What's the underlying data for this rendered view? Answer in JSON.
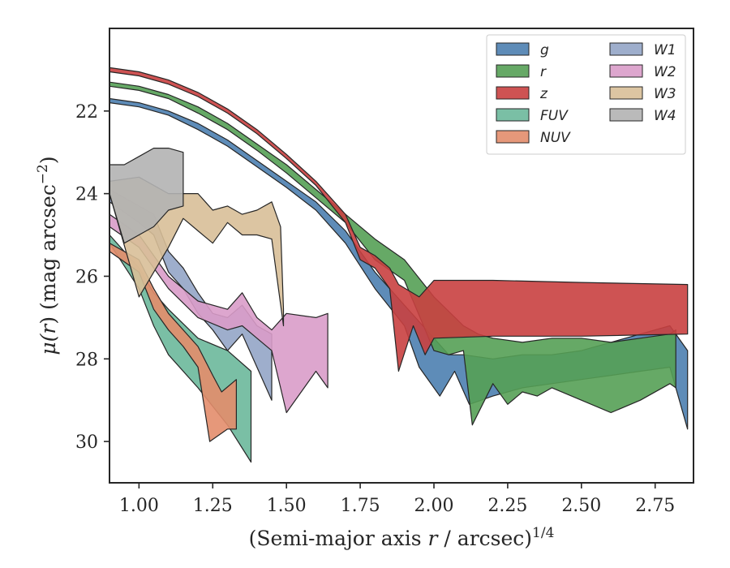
{
  "chart_data": {
    "type": "area",
    "xlabel": "(Semi-major axis r / arcsec)^1/4",
    "xlabel_parts": {
      "pre": "(Semi-major axis ",
      "var": "r",
      "post": " / arcsec)",
      "sup": "1/4"
    },
    "ylabel": "μ(r) (mag arcsec^−2)",
    "ylabel_parts": {
      "pre": "μ(",
      "var": "r",
      "post": ") (mag arcsec",
      "sup": "−2",
      "close": ")"
    },
    "xlim": [
      0.9,
      2.88
    ],
    "ylim": [
      31.0,
      20.0
    ],
    "y_inverted": true,
    "xticks": [
      1.0,
      1.25,
      1.5,
      1.75,
      2.0,
      2.25,
      2.5,
      2.75
    ],
    "xtick_labels": [
      "1.00",
      "1.25",
      "1.50",
      "1.75",
      "2.00",
      "2.25",
      "2.50",
      "2.75"
    ],
    "yticks": [
      22,
      24,
      26,
      28,
      30
    ],
    "ytick_labels": [
      "22",
      "24",
      "26",
      "28",
      "30"
    ],
    "grid": false,
    "legend": {
      "placement": "top-right",
      "columns": 2
    },
    "series": [
      {
        "name": "g",
        "color": "#4c7fb0",
        "upper": [
          [
            0.9,
            21.7
          ],
          [
            1.0,
            21.8
          ],
          [
            1.1,
            22.0
          ],
          [
            1.2,
            22.3
          ],
          [
            1.3,
            22.7
          ],
          [
            1.4,
            23.2
          ],
          [
            1.5,
            23.7
          ],
          [
            1.6,
            24.2
          ],
          [
            1.7,
            24.9
          ],
          [
            1.8,
            25.9
          ],
          [
            1.9,
            26.7
          ],
          [
            2.0,
            27.5
          ],
          [
            2.05,
            27.9
          ],
          [
            2.1,
            27.9
          ],
          [
            2.2,
            28.0
          ],
          [
            2.3,
            27.9
          ],
          [
            2.4,
            27.9
          ],
          [
            2.5,
            27.8
          ],
          [
            2.6,
            27.6
          ],
          [
            2.7,
            27.4
          ],
          [
            2.8,
            27.2
          ],
          [
            2.86,
            27.8
          ]
        ],
        "lower": [
          [
            0.9,
            21.8
          ],
          [
            1.0,
            21.9
          ],
          [
            1.1,
            22.1
          ],
          [
            1.2,
            22.45
          ],
          [
            1.3,
            22.85
          ],
          [
            1.4,
            23.35
          ],
          [
            1.5,
            23.85
          ],
          [
            1.6,
            24.4
          ],
          [
            1.7,
            25.2
          ],
          [
            1.8,
            26.3
          ],
          [
            1.9,
            27.2
          ],
          [
            1.95,
            28.2
          ],
          [
            2.02,
            28.9
          ],
          [
            2.07,
            28.3
          ],
          [
            2.12,
            29.1
          ],
          [
            2.2,
            28.9
          ],
          [
            2.25,
            28.8
          ],
          [
            2.3,
            28.7
          ],
          [
            2.4,
            28.6
          ],
          [
            2.5,
            28.5
          ],
          [
            2.6,
            28.4
          ],
          [
            2.7,
            28.3
          ],
          [
            2.8,
            28.2
          ],
          [
            2.86,
            29.7
          ]
        ]
      },
      {
        "name": "r",
        "color": "#55a055",
        "upper": [
          [
            0.9,
            21.3
          ],
          [
            1.0,
            21.4
          ],
          [
            1.1,
            21.6
          ],
          [
            1.2,
            21.9
          ],
          [
            1.3,
            22.3
          ],
          [
            1.4,
            22.8
          ],
          [
            1.5,
            23.3
          ],
          [
            1.6,
            23.9
          ],
          [
            1.7,
            24.5
          ],
          [
            1.8,
            25.1
          ],
          [
            1.9,
            25.6
          ],
          [
            2.0,
            26.5
          ],
          [
            2.1,
            27.2
          ],
          [
            2.15,
            27.4
          ],
          [
            2.2,
            27.5
          ],
          [
            2.3,
            27.6
          ],
          [
            2.4,
            27.5
          ],
          [
            2.5,
            27.5
          ],
          [
            2.6,
            27.6
          ],
          [
            2.7,
            27.5
          ],
          [
            2.8,
            27.4
          ],
          [
            2.82,
            27.3
          ]
        ],
        "lower": [
          [
            0.9,
            21.4
          ],
          [
            1.0,
            21.5
          ],
          [
            1.1,
            21.7
          ],
          [
            1.2,
            22.05
          ],
          [
            1.3,
            22.45
          ],
          [
            1.4,
            22.95
          ],
          [
            1.5,
            23.5
          ],
          [
            1.6,
            24.1
          ],
          [
            1.7,
            24.7
          ],
          [
            1.8,
            25.6
          ],
          [
            1.9,
            26.1
          ],
          [
            2.0,
            27.8
          ],
          [
            2.05,
            27.9
          ],
          [
            2.1,
            27.8
          ],
          [
            2.13,
            29.6
          ],
          [
            2.2,
            28.6
          ],
          [
            2.25,
            29.1
          ],
          [
            2.3,
            28.8
          ],
          [
            2.35,
            28.9
          ],
          [
            2.4,
            28.7
          ],
          [
            2.5,
            29.0
          ],
          [
            2.6,
            29.3
          ],
          [
            2.7,
            29.0
          ],
          [
            2.8,
            28.6
          ],
          [
            2.82,
            28.7
          ]
        ]
      },
      {
        "name": "z",
        "color": "#c94040",
        "upper": [
          [
            0.9,
            20.95
          ],
          [
            1.0,
            21.05
          ],
          [
            1.1,
            21.25
          ],
          [
            1.2,
            21.55
          ],
          [
            1.3,
            21.95
          ],
          [
            1.4,
            22.45
          ],
          [
            1.5,
            23.05
          ],
          [
            1.6,
            23.7
          ],
          [
            1.7,
            24.5
          ],
          [
            1.75,
            25.3
          ],
          [
            1.8,
            25.5
          ],
          [
            1.85,
            25.8
          ],
          [
            1.88,
            26.2
          ],
          [
            1.95,
            26.5
          ],
          [
            2.0,
            26.1
          ],
          [
            2.2,
            26.1
          ],
          [
            2.5,
            26.15
          ],
          [
            2.86,
            26.2
          ]
        ],
        "lower": [
          [
            0.9,
            21.05
          ],
          [
            1.0,
            21.15
          ],
          [
            1.1,
            21.35
          ],
          [
            1.2,
            21.65
          ],
          [
            1.3,
            22.05
          ],
          [
            1.4,
            22.55
          ],
          [
            1.5,
            23.15
          ],
          [
            1.6,
            23.8
          ],
          [
            1.7,
            24.7
          ],
          [
            1.75,
            25.6
          ],
          [
            1.8,
            25.8
          ],
          [
            1.85,
            26.3
          ],
          [
            1.88,
            28.3
          ],
          [
            1.93,
            27.2
          ],
          [
            1.97,
            27.9
          ],
          [
            2.0,
            27.5
          ],
          [
            2.2,
            27.45
          ],
          [
            2.5,
            27.45
          ],
          [
            2.86,
            27.4
          ]
        ]
      },
      {
        "name": "FUV",
        "color": "#6bb89b",
        "upper": [
          [
            0.9,
            25.0
          ],
          [
            1.0,
            25.8
          ],
          [
            1.05,
            26.4
          ],
          [
            1.1,
            26.8
          ],
          [
            1.2,
            27.5
          ],
          [
            1.3,
            27.8
          ],
          [
            1.38,
            28.3
          ]
        ],
        "lower": [
          [
            0.9,
            25.2
          ],
          [
            1.0,
            26.3
          ],
          [
            1.05,
            27.2
          ],
          [
            1.1,
            27.9
          ],
          [
            1.2,
            28.7
          ],
          [
            1.3,
            29.6
          ],
          [
            1.38,
            30.5
          ]
        ]
      },
      {
        "name": "NUV",
        "color": "#e38d6c",
        "upper": [
          [
            0.9,
            25.2
          ],
          [
            1.0,
            25.6
          ],
          [
            1.05,
            26.3
          ],
          [
            1.1,
            26.9
          ],
          [
            1.15,
            27.3
          ],
          [
            1.2,
            27.7
          ],
          [
            1.25,
            28.4
          ],
          [
            1.28,
            28.8
          ],
          [
            1.33,
            28.5
          ]
        ],
        "lower": [
          [
            0.9,
            25.4
          ],
          [
            1.0,
            25.9
          ],
          [
            1.05,
            26.8
          ],
          [
            1.1,
            27.3
          ],
          [
            1.15,
            27.7
          ],
          [
            1.2,
            28.2
          ],
          [
            1.24,
            30.0
          ],
          [
            1.3,
            29.7
          ],
          [
            1.33,
            29.7
          ]
        ]
      },
      {
        "name": "W1",
        "color": "#93a5c7",
        "upper": [
          [
            0.9,
            23.9
          ],
          [
            1.0,
            24.3
          ],
          [
            1.05,
            24.5
          ],
          [
            1.1,
            25.4
          ],
          [
            1.15,
            25.8
          ],
          [
            1.2,
            26.4
          ],
          [
            1.25,
            26.9
          ],
          [
            1.3,
            27.0
          ],
          [
            1.35,
            26.7
          ],
          [
            1.4,
            27.2
          ],
          [
            1.45,
            27.4
          ]
        ],
        "lower": [
          [
            0.9,
            24.2
          ],
          [
            1.0,
            24.7
          ],
          [
            1.05,
            25.0
          ],
          [
            1.1,
            25.9
          ],
          [
            1.15,
            26.3
          ],
          [
            1.2,
            26.9
          ],
          [
            1.25,
            27.3
          ],
          [
            1.3,
            27.8
          ],
          [
            1.35,
            27.4
          ],
          [
            1.4,
            28.2
          ],
          [
            1.45,
            29.0
          ]
        ]
      },
      {
        "name": "W2",
        "color": "#d99cc9",
        "upper": [
          [
            0.9,
            24.5
          ],
          [
            1.0,
            25.0
          ],
          [
            1.1,
            26.0
          ],
          [
            1.2,
            26.6
          ],
          [
            1.3,
            26.8
          ],
          [
            1.35,
            26.4
          ],
          [
            1.4,
            27.0
          ],
          [
            1.45,
            27.3
          ],
          [
            1.5,
            26.9
          ],
          [
            1.6,
            27.0
          ],
          [
            1.64,
            26.9
          ]
        ],
        "lower": [
          [
            0.9,
            24.8
          ],
          [
            1.0,
            25.3
          ],
          [
            1.1,
            26.3
          ],
          [
            1.2,
            27.0
          ],
          [
            1.3,
            27.3
          ],
          [
            1.35,
            27.2
          ],
          [
            1.4,
            27.5
          ],
          [
            1.45,
            27.8
          ],
          [
            1.5,
            29.3
          ],
          [
            1.6,
            28.3
          ],
          [
            1.64,
            28.7
          ]
        ]
      },
      {
        "name": "W3",
        "color": "#d8bf98",
        "upper": [
          [
            0.9,
            23.7
          ],
          [
            1.0,
            23.6
          ],
          [
            1.1,
            24.0
          ],
          [
            1.2,
            24.0
          ],
          [
            1.25,
            24.4
          ],
          [
            1.3,
            24.3
          ],
          [
            1.35,
            24.5
          ],
          [
            1.4,
            24.4
          ],
          [
            1.45,
            24.2
          ],
          [
            1.48,
            24.8
          ],
          [
            1.49,
            26.8
          ]
        ],
        "lower": [
          [
            0.9,
            24.0
          ],
          [
            1.0,
            26.5
          ],
          [
            1.1,
            25.3
          ],
          [
            1.15,
            24.6
          ],
          [
            1.2,
            24.9
          ],
          [
            1.25,
            25.2
          ],
          [
            1.3,
            24.7
          ],
          [
            1.35,
            25.0
          ],
          [
            1.4,
            25.0
          ],
          [
            1.45,
            25.1
          ],
          [
            1.49,
            27.2
          ]
        ]
      },
      {
        "name": "W4",
        "color": "#b3b3b3",
        "upper": [
          [
            0.9,
            23.3
          ],
          [
            0.95,
            23.3
          ],
          [
            1.0,
            23.1
          ],
          [
            1.05,
            22.9
          ],
          [
            1.1,
            22.9
          ],
          [
            1.15,
            23.0
          ]
        ],
        "lower": [
          [
            0.9,
            24.0
          ],
          [
            0.95,
            25.2
          ],
          [
            1.0,
            25.0
          ],
          [
            1.05,
            24.8
          ],
          [
            1.1,
            24.4
          ],
          [
            1.15,
            24.3
          ]
        ]
      }
    ]
  }
}
